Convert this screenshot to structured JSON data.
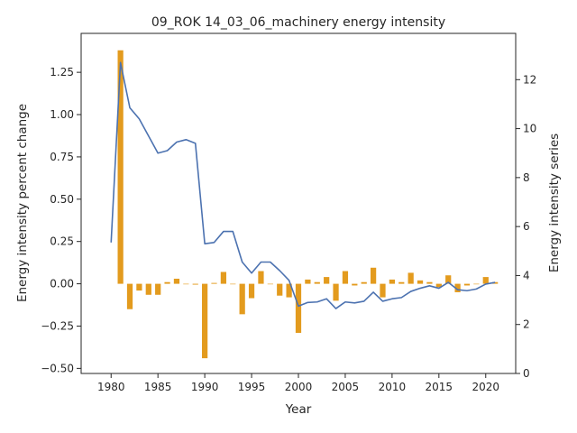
{
  "chart_data": {
    "type": "bar+line",
    "title": "09_ROK 14_03_06_machinery energy intensity",
    "xlabel": "Year",
    "ylabel_left": "Energy intensity percent change",
    "ylabel_right": "Energy intensity series",
    "xlim": [
      1976.8,
      2023.2
    ],
    "ylim_left": [
      -0.53,
      1.48
    ],
    "ylim_right": [
      0,
      13.89
    ],
    "x_ticks": [
      1980,
      1985,
      1990,
      1995,
      2000,
      2005,
      2010,
      2015,
      2020
    ],
    "y_ticks_left": [
      -0.5,
      -0.25,
      0.0,
      0.25,
      0.5,
      0.75,
      1.0,
      1.25
    ],
    "y_ticks_right": [
      0,
      2,
      4,
      6,
      8,
      10,
      12
    ],
    "x_tick_labels": [
      "1980",
      "1985",
      "1990",
      "1995",
      "2000",
      "2005",
      "2010",
      "2015",
      "2020"
    ],
    "y_tick_labels_left": [
      "−0.50",
      "−0.25",
      "0.00",
      "0.25",
      "0.50",
      "0.75",
      "1.00",
      "1.25"
    ],
    "y_tick_labels_right": [
      "0",
      "2",
      "4",
      "6",
      "8",
      "10",
      "12"
    ],
    "bar_color": "#e39b1e",
    "line_color": "#4c72b0",
    "bars": {
      "years": [
        1981,
        1982,
        1983,
        1984,
        1985,
        1986,
        1987,
        1988,
        1989,
        1990,
        1991,
        1992,
        1993,
        1994,
        1995,
        1996,
        1997,
        1998,
        1999,
        2000,
        2001,
        2002,
        2003,
        2004,
        2005,
        2006,
        2007,
        2008,
        2009,
        2010,
        2011,
        2012,
        2013,
        2014,
        2015,
        2016,
        2017,
        2018,
        2019,
        2020,
        2021
      ],
      "values": [
        1.38,
        -0.15,
        -0.04,
        -0.065,
        -0.065,
        0.01,
        0.03,
        0.0,
        -0.005,
        -0.44,
        0.005,
        0.07,
        0.0,
        -0.18,
        -0.085,
        0.075,
        0.0,
        -0.07,
        -0.08,
        -0.29,
        0.025,
        0.01,
        0.04,
        -0.1,
        0.075,
        -0.01,
        0.01,
        0.095,
        -0.08,
        0.025,
        0.01,
        0.065,
        0.02,
        0.01,
        -0.02,
        0.05,
        -0.05,
        -0.01,
        0.0,
        0.04,
        0.01
      ]
    },
    "line": {
      "years": [
        1980,
        1981,
        1982,
        1983,
        1984,
        1985,
        1986,
        1987,
        1988,
        1989,
        1990,
        1991,
        1992,
        1993,
        1994,
        1995,
        1996,
        1997,
        1998,
        1999,
        2000,
        2001,
        2002,
        2003,
        2004,
        2005,
        2006,
        2007,
        2008,
        2009,
        2010,
        2011,
        2012,
        2013,
        2014,
        2015,
        2016,
        2017,
        2018,
        2019,
        2020,
        2021
      ],
      "values": [
        5.35,
        12.7,
        10.85,
        10.4,
        9.7,
        9.0,
        9.1,
        9.45,
        9.55,
        9.4,
        5.3,
        5.35,
        5.8,
        5.8,
        4.55,
        4.1,
        4.55,
        4.55,
        4.2,
        3.8,
        2.75,
        2.9,
        2.92,
        3.05,
        2.65,
        2.92,
        2.88,
        2.95,
        3.32,
        2.95,
        3.05,
        3.1,
        3.35,
        3.48,
        3.58,
        3.48,
        3.72,
        3.42,
        3.38,
        3.45,
        3.65,
        3.72
      ]
    }
  }
}
